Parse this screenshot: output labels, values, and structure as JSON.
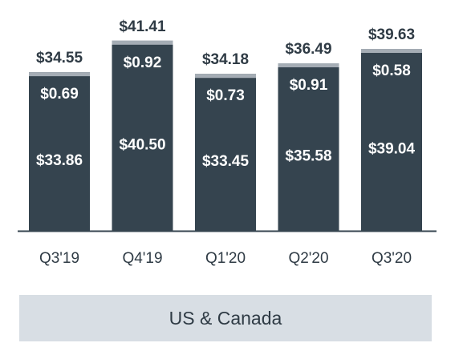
{
  "chart_data": {
    "type": "bar",
    "stacked": true,
    "categories": [
      "Q3'19",
      "Q4'19",
      "Q1'20",
      "Q2'20",
      "Q3'20"
    ],
    "series": [
      {
        "values": [
          33.86,
          40.5,
          33.45,
          35.58,
          39.04
        ],
        "labels": [
          "$33.86",
          "$40.50",
          "$33.45",
          "$35.58",
          "$39.04"
        ]
      },
      {
        "values": [
          0.69,
          0.92,
          0.73,
          0.91,
          0.58
        ],
        "labels": [
          "$0.69",
          "$0.92",
          "$0.73",
          "$0.91",
          "$0.58"
        ]
      }
    ],
    "totals": [
      34.55,
      41.41,
      34.18,
      36.49,
      39.63
    ],
    "total_labels": [
      "$34.55",
      "$41.41",
      "$34.18",
      "$36.49",
      "$39.63"
    ],
    "ylim": [
      0,
      43.3
    ],
    "grid": false
  },
  "region_label": "US & Canada",
  "colors": {
    "bar": "#35444f",
    "bar_cap": "#a5adb5",
    "axis": "#35444f",
    "label_light": "#ffffff",
    "label_dark": "#2f3b45",
    "region_bg": "#d8dee4"
  }
}
